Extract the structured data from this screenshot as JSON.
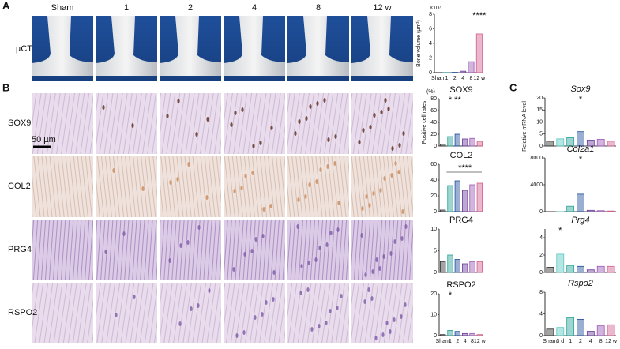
{
  "panels": [
    "A",
    "B",
    "C"
  ],
  "columns": [
    "Sham",
    "1",
    "2",
    "4",
    "8",
    "12 w"
  ],
  "rows": [
    "SOX9",
    "COL2",
    "PRG4",
    "RSPO2"
  ],
  "ct_row": "µCT",
  "scale_bar": "50 µm",
  "chart_data": [
    {
      "type": "bar",
      "ylabel": "Bone volume (µm³)",
      "multiplier": "×10⁷",
      "categories": [
        "Sham",
        "1",
        "2",
        "4",
        "8",
        "12 w"
      ],
      "values": [
        0.02,
        0.03,
        0.05,
        0.2,
        1.5,
        5.3
      ],
      "colors": [
        "#333333",
        "#2aa198",
        "#1f4e9c",
        "#6a3d9a",
        "#9b59b6",
        "#d35f8d"
      ],
      "ylim": [
        0,
        8
      ],
      "yticks": [
        0,
        2,
        4,
        6,
        8
      ],
      "annotations": [
        "****"
      ]
    },
    {
      "type": "bar",
      "title": "SOX9",
      "ylabel": "Positive cell rates",
      "unit": "(%)",
      "values": [
        3,
        16,
        20,
        12,
        13,
        8
      ],
      "colors": [
        "#333333",
        "#2aa198",
        "#1f4e9c",
        "#6a3d9a",
        "#9b59b6",
        "#d35f8d"
      ],
      "ylim": [
        0,
        80
      ],
      "yticks": [
        0,
        20,
        40,
        60,
        80
      ],
      "annotations": [
        "*",
        "**"
      ]
    },
    {
      "type": "bar",
      "title": "COL2",
      "values": [
        2,
        33,
        39,
        27,
        34,
        36
      ],
      "colors": [
        "#333333",
        "#2aa198",
        "#1f4e9c",
        "#6a3d9a",
        "#9b59b6",
        "#d35f8d"
      ],
      "ylim": [
        0,
        60
      ],
      "yticks": [
        0,
        20,
        40,
        60
      ],
      "annotations": [
        "****"
      ]
    },
    {
      "type": "bar",
      "title": "PRG4",
      "values": [
        2.5,
        4,
        3,
        2,
        2.5,
        2.5
      ],
      "colors": [
        "#333333",
        "#2aa198",
        "#1f4e9c",
        "#6a3d9a",
        "#9b59b6",
        "#d35f8d"
      ],
      "ylim": [
        0,
        10
      ],
      "yticks": [
        0,
        5,
        10
      ]
    },
    {
      "type": "bar",
      "title": "RSPO2",
      "categories": [
        "Sham",
        "1",
        "2",
        "4",
        "8",
        "12 w"
      ],
      "values": [
        0.5,
        2.5,
        2,
        1,
        1,
        0.5
      ],
      "colors": [
        "#333333",
        "#2aa198",
        "#1f4e9c",
        "#6a3d9a",
        "#9b59b6",
        "#d35f8d"
      ],
      "ylim": [
        0,
        20
      ],
      "yticks": [
        0,
        10,
        20
      ],
      "annotations": [
        "*"
      ]
    },
    {
      "type": "bar",
      "title": "Sox9",
      "ylabel": "Relative mRNA level",
      "values": [
        2,
        3,
        3.5,
        6,
        2.5,
        2.8,
        2
      ],
      "colors": [
        "#333333",
        "#5bc8c0",
        "#2aa198",
        "#1f4e9c",
        "#6a3d9a",
        "#9b59b6",
        "#d35f8d"
      ],
      "ylim": [
        0,
        20
      ],
      "yticks": [
        0,
        5,
        10,
        15,
        20
      ],
      "annotations": [
        "*"
      ]
    },
    {
      "type": "bar",
      "title": "Col2a1",
      "values": [
        10,
        20,
        800,
        2600,
        200,
        150,
        100
      ],
      "colors": [
        "#333333",
        "#5bc8c0",
        "#2aa198",
        "#1f4e9c",
        "#6a3d9a",
        "#9b59b6",
        "#d35f8d"
      ],
      "ylim": [
        0,
        8000
      ],
      "yticks": [
        0,
        4000,
        8000
      ],
      "annotations": [
        "*"
      ]
    },
    {
      "type": "bar",
      "title": "Prg4",
      "values": [
        0.6,
        2.1,
        0.8,
        0.7,
        0.3,
        0.7,
        0.7
      ],
      "colors": [
        "#333333",
        "#5bc8c0",
        "#2aa198",
        "#1f4e9c",
        "#6a3d9a",
        "#9b59b6",
        "#d35f8d"
      ],
      "ylim": [
        0,
        5
      ],
      "yticks": [
        0,
        2,
        4
      ],
      "annotations": [
        "*"
      ]
    },
    {
      "type": "bar",
      "title": "Rspo2",
      "categories": [
        "Sham",
        "3 d",
        "1",
        "2",
        "4",
        "8",
        "12 w"
      ],
      "values": [
        1.2,
        1.5,
        3.3,
        3,
        0.8,
        1.8,
        2
      ],
      "colors": [
        "#333333",
        "#5bc8c0",
        "#2aa198",
        "#1f4e9c",
        "#6a3d9a",
        "#9b59b6",
        "#d35f8d"
      ],
      "ylim": [
        0,
        8
      ],
      "yticks": [
        0,
        4,
        8
      ]
    }
  ]
}
